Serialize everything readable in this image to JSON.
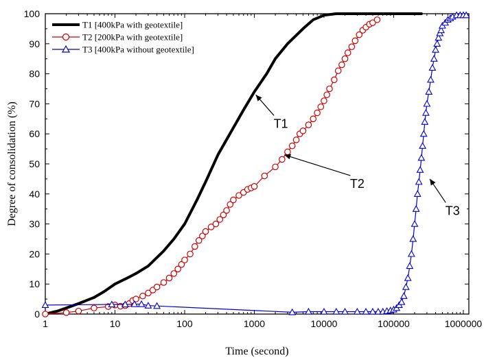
{
  "chart_data": {
    "type": "line",
    "xscale": "log",
    "xlabel": "Time (second)",
    "ylabel": "Degree of consolidation (%)",
    "xlim": [
      1,
      1200000
    ],
    "ylim": [
      0,
      100
    ],
    "xticks": [
      1,
      10,
      100,
      1000,
      10000,
      100000,
      1000000
    ],
    "xtick_labels": [
      "1",
      "10",
      "100",
      "1000",
      "10000",
      "100000",
      "1000000"
    ],
    "yticks": [
      0,
      10,
      20,
      30,
      40,
      50,
      60,
      70,
      80,
      90,
      100
    ],
    "ytick_labels": [
      "0",
      "10",
      "20",
      "30",
      "40",
      "50",
      "60",
      "70",
      "80",
      "90",
      "100"
    ],
    "legend": {
      "position": "top-left"
    },
    "series": [
      {
        "name": "T1 [400kPa with geotextile]",
        "color": "#000000",
        "marker": "none",
        "x": [
          1,
          1.5,
          2,
          3,
          5,
          7,
          10,
          15,
          20,
          30,
          50,
          70,
          100,
          150,
          200,
          300,
          500,
          700,
          1000,
          1500,
          2000,
          3000,
          5000,
          7000,
          10000,
          15000,
          20000,
          50000,
          100000,
          250000
        ],
        "y": [
          0,
          1,
          2,
          3.5,
          5.5,
          7.5,
          10,
          12,
          13.5,
          16,
          21,
          25,
          30,
          38,
          44,
          53,
          62,
          68,
          74,
          80,
          85,
          90,
          95,
          98,
          99.5,
          100,
          100,
          100,
          100,
          100
        ]
      },
      {
        "name": "T2 [200kPa with geotextile]",
        "color": "#cc0000",
        "marker": "circle",
        "x": [
          1,
          2,
          3,
          5,
          8,
          10,
          12,
          14,
          16,
          18,
          20,
          25,
          30,
          35,
          40,
          50,
          60,
          70,
          80,
          90,
          100,
          120,
          140,
          160,
          180,
          200,
          240,
          280,
          320,
          360,
          400,
          450,
          500,
          600,
          700,
          800,
          900,
          1000,
          1400,
          2000,
          2500,
          3000,
          3500,
          4000,
          4500,
          5000,
          6000,
          7000,
          8000,
          9000,
          10000,
          11000,
          12000,
          14000,
          16000,
          18000,
          20000,
          22000,
          25000,
          28000,
          32000,
          36000,
          40000,
          45000,
          50000,
          58000
        ],
        "y": [
          0,
          0.5,
          1,
          2,
          2.5,
          3,
          2.6,
          2.8,
          3.5,
          4.5,
          5,
          6,
          7,
          8,
          9,
          10.5,
          12,
          13.5,
          15,
          16.5,
          18,
          20,
          22.5,
          24.5,
          26,
          27.5,
          29,
          30,
          31.5,
          33,
          34.5,
          36.5,
          38,
          39.5,
          40.5,
          41.5,
          42,
          42.5,
          46,
          49,
          51.5,
          54,
          56,
          58,
          60,
          61,
          63,
          65,
          67,
          69,
          71,
          73,
          75,
          78,
          81,
          83,
          85,
          87,
          89,
          91,
          93,
          94.5,
          95.5,
          96.5,
          97,
          98
        ]
      },
      {
        "name": "T3 [400kPa without geotextile]",
        "color": "#0000cc",
        "marker": "triangle",
        "x": [
          1,
          9,
          14,
          19,
          24,
          30,
          40,
          3500,
          6000,
          10000,
          15000,
          20000,
          30000,
          40000,
          50000,
          60000,
          70000,
          80000,
          90000,
          100000,
          110000,
          120000,
          130000,
          140000,
          150000,
          160000,
          170000,
          180000,
          190000,
          200000,
          210000,
          220000,
          230000,
          240000,
          250000,
          260000,
          270000,
          280000,
          290000,
          300000,
          320000,
          340000,
          360000,
          380000,
          400000,
          420000,
          440000,
          460000,
          480000,
          500000,
          550000,
          600000,
          650000,
          700000,
          800000,
          900000,
          1000000,
          1100000
        ],
        "y": [
          3,
          3.2,
          3.2,
          3.3,
          3.3,
          2.8,
          2.7,
          0.6,
          0.8,
          0.8,
          0.8,
          0.8,
          0.8,
          0.8,
          0.8,
          0.8,
          0.8,
          1,
          1.2,
          1.5,
          2,
          3,
          4,
          6,
          9,
          12,
          16,
          20,
          25,
          30,
          35,
          40,
          44,
          48,
          52,
          56,
          60,
          64,
          67,
          70,
          74,
          78,
          82,
          85,
          88,
          90,
          92,
          93.5,
          94.5,
          96,
          97,
          98,
          98.5,
          99,
          99.5,
          99.5,
          99.5,
          99.5
        ]
      }
    ],
    "annotations": [
      {
        "text": "T1",
        "text_x": 2400,
        "text_y": 62,
        "arrow_to_x": 1050,
        "arrow_to_y": 73
      },
      {
        "text": "T2",
        "text_x": 30000,
        "text_y": 42,
        "arrow_to_x": 2700,
        "arrow_to_y": 53
      },
      {
        "text": "T3",
        "text_x": 700000,
        "text_y": 33,
        "arrow_to_x": 330000,
        "arrow_to_y": 45
      }
    ]
  }
}
